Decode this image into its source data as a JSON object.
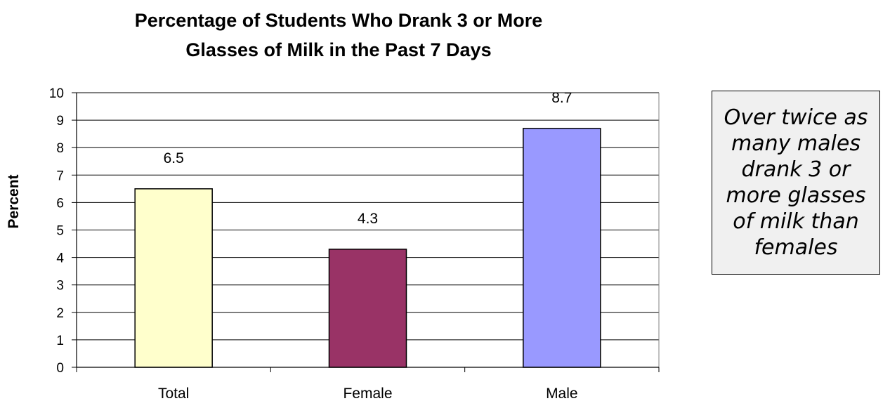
{
  "chart_data": {
    "type": "bar",
    "title_lines": [
      "Percentage of Students Who Drank 3 or More",
      "Glasses of Milk in the Past 7 Days"
    ],
    "ylabel": "Percent",
    "xlabel": "",
    "ylim": [
      0,
      10
    ],
    "yticks": [
      0,
      1,
      2,
      3,
      4,
      5,
      6,
      7,
      8,
      9,
      10
    ],
    "grid": true,
    "categories": [
      "Total",
      "Female",
      "Male"
    ],
    "values": [
      6.5,
      4.3,
      8.7
    ],
    "data_labels": [
      "6.5",
      "4.3",
      "8.7"
    ],
    "colors": [
      "#ffffcc",
      "#993366",
      "#9999ff"
    ]
  },
  "annotation": "Over twice as many males drank 3 or more glasses of milk than females"
}
